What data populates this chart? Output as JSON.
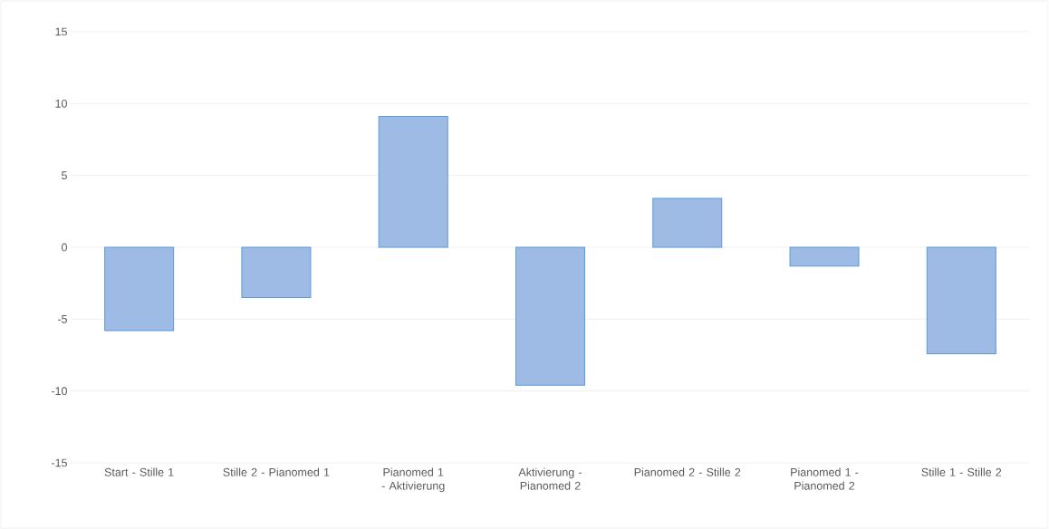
{
  "chart_data": {
    "type": "bar",
    "categories": [
      "Start - Stille 1",
      "Stille 2 - Pianomed 1",
      "Pianomed 1 - Aktivierung",
      "Aktivierung - Pianomed 2",
      "Pianomed 2 - Stille 2",
      "Pianomed 1 - Pianomed 2",
      "Stille 1 - Stille 2"
    ],
    "values": [
      -5.8,
      -3.5,
      9.1,
      -9.6,
      3.4,
      -1.3,
      -7.4
    ],
    "color": "#9dbbe4",
    "ylim": [
      -15,
      15
    ],
    "yticks": [
      -15,
      -10,
      -5,
      0,
      5,
      10,
      15
    ],
    "grid": "y"
  }
}
